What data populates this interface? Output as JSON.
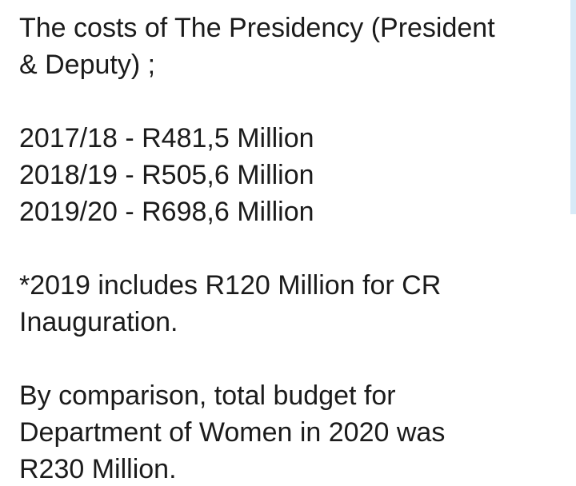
{
  "message": {
    "lines": [
      "The costs of The Presidency (President",
      "& Deputy) ;",
      "",
      "2017/18 - R481,5 Million",
      "2018/19 - R505,6 Million",
      "2019/20 - R698,6 Million",
      "",
      "*2019 includes R120 Million for CR",
      "Inauguration.",
      "",
      "By comparison, total budget for",
      "Department of Women in 2020 was",
      "R230 Million."
    ]
  },
  "scrollbar": {
    "position_fraction": 0.0,
    "visible_fraction": 0.44,
    "color": "#d8eaf7"
  },
  "colors": {
    "text": "#1b1b1b",
    "background": "#ffffff"
  }
}
